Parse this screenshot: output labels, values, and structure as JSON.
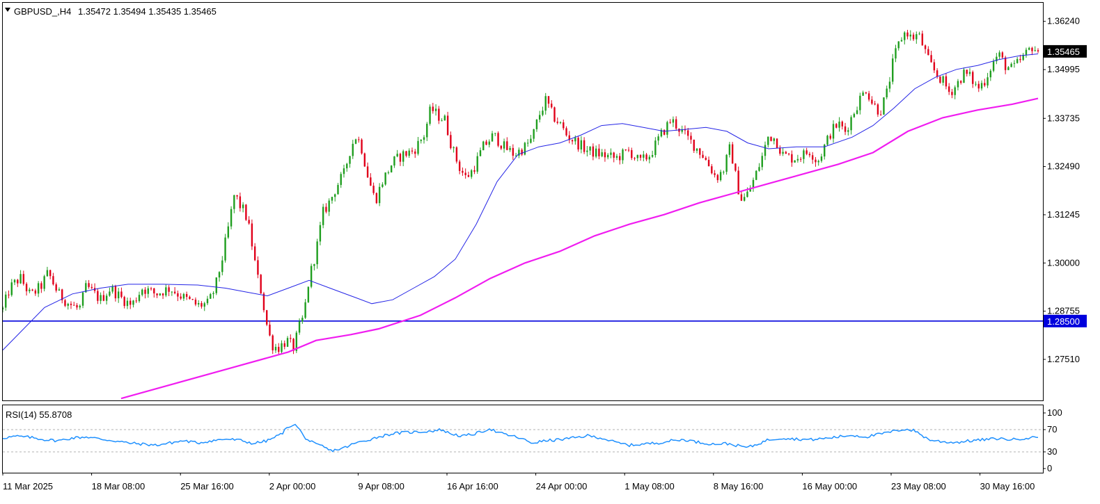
{
  "header": {
    "symbol": "GBPUSD_,H4",
    "open": "1.35472",
    "high": "1.35494",
    "low": "1.35435",
    "close": "1.35465"
  },
  "rsi_header": {
    "label": "RSI(14)",
    "value": "55.8708"
  },
  "colors": {
    "bull": "#1f9e1f",
    "bear": "#e0001a",
    "ma_fast": "#2424e6",
    "ma_slow": "#f01cf0",
    "hline": "#0000dd",
    "rsi": "#1e90ff",
    "price_tag_bg": "#000000",
    "level_tag_bg": "#0000dd"
  },
  "chart_data": [
    {
      "type": "candlestick",
      "title": "",
      "y_ticks": [
        "1.36240",
        "1.34995",
        "1.33735",
        "1.32490",
        "1.31245",
        "1.30000",
        "1.28755",
        "1.27510"
      ],
      "ylim": [
        1.2645,
        1.3672
      ],
      "x_ticks": [
        "11 Mar 2025",
        "18 Mar 08:00",
        "25 Mar 16:00",
        "2 Apr 00:00",
        "9 Apr 08:00",
        "16 Apr 16:00",
        "24 Apr 00:00",
        "1 May 08:00",
        "8 May 16:00",
        "16 May 00:00",
        "23 May 08:00",
        "30 May 16:00"
      ],
      "current_price": "1.35465",
      "horizontal_line": {
        "value": 1.285,
        "label": "1.28500"
      },
      "bar_count": 350,
      "close_path": [
        [
          0,
          1.288
        ],
        [
          10,
          1.2935
        ],
        [
          25,
          1.2962
        ],
        [
          40,
          1.2915
        ],
        [
          55,
          1.294
        ],
        [
          65,
          1.2975
        ],
        [
          80,
          1.292
        ],
        [
          95,
          1.2895
        ],
        [
          110,
          1.288
        ],
        [
          120,
          1.294
        ],
        [
          140,
          1.2905
        ],
        [
          155,
          1.2935
        ],
        [
          170,
          1.291
        ],
        [
          185,
          1.289
        ],
        [
          200,
          1.2935
        ],
        [
          220,
          1.292
        ],
        [
          240,
          1.2935
        ],
        [
          260,
          1.291
        ],
        [
          280,
          1.289
        ],
        [
          295,
          1.2895
        ],
        [
          305,
          1.2935
        ],
        [
          315,
          1.301
        ],
        [
          325,
          1.31
        ],
        [
          333,
          1.318
        ],
        [
          340,
          1.315
        ],
        [
          348,
          1.313
        ],
        [
          355,
          1.308
        ],
        [
          365,
          1.297
        ],
        [
          372,
          1.292
        ],
        [
          378,
          1.285
        ],
        [
          386,
          1.279
        ],
        [
          395,
          1.278
        ],
        [
          408,
          1.28
        ],
        [
          418,
          1.278
        ],
        [
          425,
          1.283
        ],
        [
          432,
          1.286
        ],
        [
          440,
          1.296
        ],
        [
          450,
          1.303
        ],
        [
          460,
          1.313
        ],
        [
          470,
          1.316
        ],
        [
          480,
          1.32
        ],
        [
          490,
          1.323
        ],
        [
          500,
          1.33
        ],
        [
          508,
          1.333
        ],
        [
          515,
          1.33
        ],
        [
          520,
          1.326
        ],
        [
          525,
          1.322
        ],
        [
          535,
          1.316
        ],
        [
          545,
          1.321
        ],
        [
          560,
          1.326
        ],
        [
          575,
          1.328
        ],
        [
          590,
          1.329
        ],
        [
          605,
          1.333
        ],
        [
          615,
          1.34
        ],
        [
          625,
          1.338
        ],
        [
          635,
          1.337
        ],
        [
          645,
          1.33
        ],
        [
          655,
          1.325
        ],
        [
          665,
          1.322
        ],
        [
          675,
          1.324
        ],
        [
          690,
          1.33
        ],
        [
          705,
          1.333
        ],
        [
          720,
          1.33
        ],
        [
          735,
          1.328
        ],
        [
          750,
          1.33
        ],
        [
          760,
          1.332
        ],
        [
          770,
          1.338
        ],
        [
          780,
          1.342
        ],
        [
          790,
          1.338
        ],
        [
          800,
          1.336
        ],
        [
          810,
          1.333
        ],
        [
          825,
          1.331
        ],
        [
          840,
          1.329
        ],
        [
          860,
          1.328
        ],
        [
          880,
          1.327
        ],
        [
          900,
          1.329
        ],
        [
          915,
          1.326
        ],
        [
          930,
          1.328
        ],
        [
          945,
          1.333
        ],
        [
          960,
          1.337
        ],
        [
          975,
          1.334
        ],
        [
          985,
          1.332
        ],
        [
          995,
          1.33
        ],
        [
          1005,
          1.328
        ],
        [
          1015,
          1.325
        ],
        [
          1025,
          1.322
        ],
        [
          1035,
          1.324
        ],
        [
          1045,
          1.33
        ],
        [
          1055,
          1.32
        ],
        [
          1062,
          1.316
        ],
        [
          1070,
          1.318
        ],
        [
          1080,
          1.322
        ],
        [
          1090,
          1.327
        ],
        [
          1100,
          1.333
        ],
        [
          1110,
          1.332
        ],
        [
          1120,
          1.328
        ],
        [
          1135,
          1.327
        ],
        [
          1150,
          1.328
        ],
        [
          1160,
          1.329
        ],
        [
          1170,
          1.326
        ],
        [
          1180,
          1.33
        ],
        [
          1190,
          1.334
        ],
        [
          1200,
          1.336
        ],
        [
          1210,
          1.334
        ],
        [
          1220,
          1.338
        ],
        [
          1230,
          1.342
        ],
        [
          1240,
          1.345
        ],
        [
          1250,
          1.341
        ],
        [
          1260,
          1.339
        ],
        [
          1270,
          1.344
        ],
        [
          1280,
          1.353
        ],
        [
          1290,
          1.358
        ],
        [
          1298,
          1.36
        ],
        [
          1305,
          1.358
        ],
        [
          1315,
          1.359
        ],
        [
          1322,
          1.356
        ],
        [
          1330,
          1.352
        ],
        [
          1340,
          1.349
        ],
        [
          1350,
          1.347
        ],
        [
          1360,
          1.344
        ],
        [
          1370,
          1.346
        ],
        [
          1380,
          1.349
        ],
        [
          1390,
          1.348
        ],
        [
          1400,
          1.345
        ],
        [
          1410,
          1.347
        ],
        [
          1420,
          1.351
        ],
        [
          1430,
          1.354
        ],
        [
          1440,
          1.351
        ],
        [
          1450,
          1.35
        ],
        [
          1460,
          1.352
        ],
        [
          1470,
          1.354
        ],
        [
          1478,
          1.356
        ],
        [
          1487,
          1.35465
        ]
      ],
      "ma_fast_path": [
        [
          0,
          1.2775
        ],
        [
          30,
          1.283
        ],
        [
          60,
          1.2885
        ],
        [
          100,
          1.292
        ],
        [
          140,
          1.2935
        ],
        [
          180,
          1.2945
        ],
        [
          230,
          1.2945
        ],
        [
          280,
          1.2943
        ],
        [
          320,
          1.2935
        ],
        [
          350,
          1.2925
        ],
        [
          380,
          1.2915
        ],
        [
          410,
          1.2935
        ],
        [
          440,
          1.2955
        ],
        [
          470,
          1.2935
        ],
        [
          500,
          1.2915
        ],
        [
          530,
          1.2895
        ],
        [
          560,
          1.2905
        ],
        [
          590,
          1.2935
        ],
        [
          620,
          1.2965
        ],
        [
          650,
          1.301
        ],
        [
          680,
          1.31
        ],
        [
          710,
          1.321
        ],
        [
          740,
          1.328
        ],
        [
          770,
          1.33
        ],
        [
          800,
          1.331
        ],
        [
          830,
          1.333
        ],
        [
          860,
          1.3355
        ],
        [
          890,
          1.336
        ],
        [
          920,
          1.335
        ],
        [
          950,
          1.334
        ],
        [
          980,
          1.3345
        ],
        [
          1010,
          1.335
        ],
        [
          1040,
          1.334
        ],
        [
          1070,
          1.331
        ],
        [
          1100,
          1.3295
        ],
        [
          1140,
          1.33
        ],
        [
          1180,
          1.33
        ],
        [
          1220,
          1.3325
        ],
        [
          1250,
          1.3355
        ],
        [
          1280,
          1.34
        ],
        [
          1310,
          1.345
        ],
        [
          1340,
          1.348
        ],
        [
          1370,
          1.35
        ],
        [
          1400,
          1.351
        ],
        [
          1430,
          1.3525
        ],
        [
          1460,
          1.3535
        ],
        [
          1487,
          1.354
        ]
      ],
      "ma_slow_path": [
        [
          170,
          1.265
        ],
        [
          250,
          1.269
        ],
        [
          330,
          1.273
        ],
        [
          410,
          1.277
        ],
        [
          450,
          1.28
        ],
        [
          500,
          1.2815
        ],
        [
          540,
          1.283
        ],
        [
          600,
          1.2865
        ],
        [
          650,
          1.291
        ],
        [
          700,
          1.296
        ],
        [
          750,
          1.3
        ],
        [
          800,
          1.303
        ],
        [
          850,
          1.307
        ],
        [
          900,
          1.31
        ],
        [
          950,
          1.3125
        ],
        [
          1000,
          1.3155
        ],
        [
          1050,
          1.318
        ],
        [
          1100,
          1.3205
        ],
        [
          1150,
          1.323
        ],
        [
          1200,
          1.3255
        ],
        [
          1250,
          1.3285
        ],
        [
          1300,
          1.334
        ],
        [
          1350,
          1.3375
        ],
        [
          1400,
          1.3395
        ],
        [
          1450,
          1.341
        ],
        [
          1487,
          1.3425
        ]
      ]
    },
    {
      "type": "line",
      "title": "",
      "series_name": "RSI(14)",
      "ylim": [
        0,
        100
      ],
      "y_ticks": [
        100,
        70,
        30,
        0
      ],
      "levels": [
        70,
        30
      ],
      "path": [
        [
          0,
          55
        ],
        [
          20,
          58
        ],
        [
          40,
          56
        ],
        [
          60,
          52
        ],
        [
          80,
          50
        ],
        [
          100,
          55
        ],
        [
          120,
          57
        ],
        [
          140,
          53
        ],
        [
          160,
          50
        ],
        [
          180,
          46
        ],
        [
          200,
          44
        ],
        [
          220,
          42
        ],
        [
          240,
          46
        ],
        [
          260,
          50
        ],
        [
          280,
          46
        ],
        [
          300,
          50
        ],
        [
          320,
          53
        ],
        [
          340,
          51
        ],
        [
          360,
          45
        ],
        [
          380,
          50
        ],
        [
          400,
          62
        ],
        [
          410,
          75
        ],
        [
          418,
          80
        ],
        [
          425,
          73
        ],
        [
          432,
          58
        ],
        [
          440,
          50
        ],
        [
          450,
          43
        ],
        [
          460,
          40
        ],
        [
          470,
          32
        ],
        [
          480,
          34
        ],
        [
          490,
          37
        ],
        [
          505,
          45
        ],
        [
          520,
          50
        ],
        [
          540,
          57
        ],
        [
          560,
          63
        ],
        [
          580,
          65
        ],
        [
          600,
          66
        ],
        [
          620,
          68
        ],
        [
          630,
          70
        ],
        [
          640,
          64
        ],
        [
          660,
          58
        ],
        [
          680,
          63
        ],
        [
          700,
          72
        ],
        [
          710,
          65
        ],
        [
          720,
          62
        ],
        [
          740,
          56
        ],
        [
          760,
          46
        ],
        [
          780,
          50
        ],
        [
          800,
          52
        ],
        [
          820,
          55
        ],
        [
          840,
          59
        ],
        [
          860,
          55
        ],
        [
          880,
          47
        ],
        [
          900,
          42
        ],
        [
          920,
          44
        ],
        [
          940,
          46
        ],
        [
          960,
          50
        ],
        [
          980,
          52
        ],
        [
          1000,
          47
        ],
        [
          1020,
          44
        ],
        [
          1040,
          45
        ],
        [
          1060,
          40
        ],
        [
          1070,
          38
        ],
        [
          1080,
          42
        ],
        [
          1100,
          52
        ],
        [
          1120,
          55
        ],
        [
          1140,
          53
        ],
        [
          1160,
          52
        ],
        [
          1180,
          54
        ],
        [
          1200,
          57
        ],
        [
          1220,
          60
        ],
        [
          1240,
          57
        ],
        [
          1260,
          62
        ],
        [
          1280,
          67
        ],
        [
          1295,
          71
        ],
        [
          1310,
          68
        ],
        [
          1320,
          60
        ],
        [
          1330,
          52
        ],
        [
          1350,
          48
        ],
        [
          1370,
          47
        ],
        [
          1390,
          50
        ],
        [
          1410,
          52
        ],
        [
          1430,
          54
        ],
        [
          1450,
          52
        ],
        [
          1470,
          55
        ],
        [
          1487,
          55.87
        ]
      ]
    }
  ]
}
